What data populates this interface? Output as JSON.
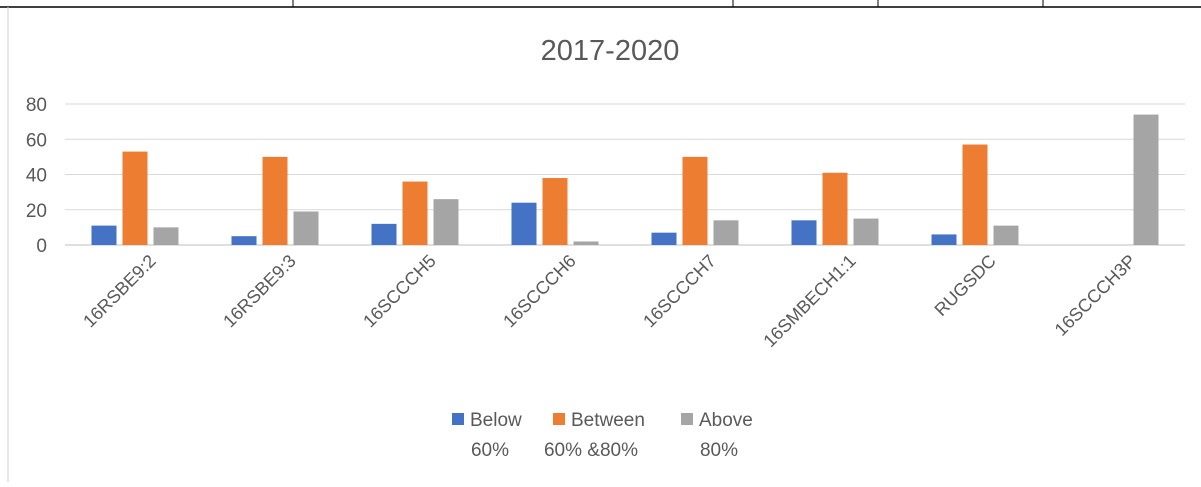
{
  "chart_data": {
    "type": "bar",
    "title": "2017-2020",
    "categories": [
      "16RSBE9:2",
      "16RSBE9:3",
      "16SCCCH5",
      "16SCCCH6",
      "16SCCCH7",
      "16SMBECH1:1",
      "RUGSDC",
      "16SCCCH3P"
    ],
    "series": [
      {
        "name": "Below 60%",
        "legend_lines": [
          "Below",
          "60%"
        ],
        "color": "#4472C4",
        "values": [
          11,
          5,
          12,
          24,
          7,
          14,
          6,
          0
        ]
      },
      {
        "name": "Between 60% &80%",
        "legend_lines": [
          "Between",
          "60% &80%"
        ],
        "color": "#ED7D31",
        "values": [
          53,
          50,
          36,
          38,
          50,
          41,
          57,
          0
        ]
      },
      {
        "name": "Above 80%",
        "legend_lines": [
          "Above",
          "80%"
        ],
        "color": "#A5A5A5",
        "values": [
          10,
          19,
          26,
          2,
          14,
          15,
          11,
          74
        ]
      }
    ],
    "ylim": [
      0,
      80
    ],
    "yticks": [
      0,
      20,
      40,
      60,
      80
    ],
    "xlabel": "",
    "ylabel": "",
    "grid": true,
    "legend": "bottom"
  }
}
